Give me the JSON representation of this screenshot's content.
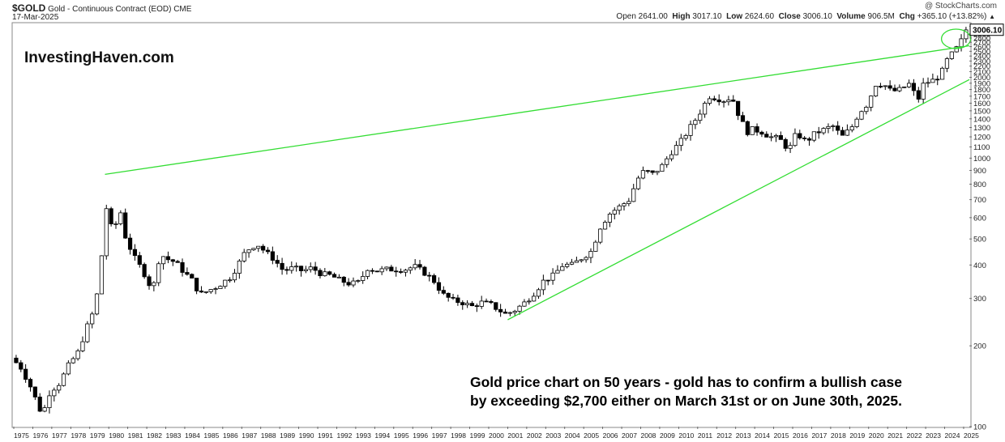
{
  "header": {
    "symbol": "$GOLD",
    "name": "Gold - Continuous Contract (EOD)",
    "exchange": "CME",
    "date": "17-Mar-2025",
    "credit": "@ StockCharts.com",
    "open_label": "Open",
    "open_value": "2641.00",
    "high_label": "High",
    "high_value": "3017.10",
    "low_label": "Low",
    "low_value": "2624.60",
    "close_label": "Close",
    "close_value": "3006.10",
    "volume_label": "Volume",
    "volume_value": "906.5M",
    "chg_label": "Chg",
    "chg_value": "+365.10 (+13.82%)",
    "chg_arrow": "▲"
  },
  "chart_data": {
    "type": "candlestick",
    "scale": "log",
    "ylim": [
      100,
      3150
    ],
    "xlim": [
      1975,
      2025.3
    ],
    "grid": false,
    "watermark": "InvestingHaven.com",
    "last_price_label": "3006.10",
    "yticks": [
      100,
      200,
      300,
      400,
      500,
      600,
      700,
      800,
      900,
      1000,
      1100,
      1200,
      1300,
      1400,
      1500,
      1600,
      1700,
      1800,
      1900,
      2000,
      2100,
      2200,
      2300,
      2400,
      2500,
      2600,
      2700,
      2800,
      2900,
      3100
    ],
    "xticks": [
      1975,
      1976,
      1977,
      1978,
      1979,
      1980,
      1981,
      1982,
      1983,
      1984,
      1985,
      1986,
      1987,
      1988,
      1989,
      1990,
      1991,
      1992,
      1993,
      1994,
      1995,
      1996,
      1997,
      1998,
      1999,
      2000,
      2001,
      2002,
      2003,
      2004,
      2005,
      2006,
      2007,
      2008,
      2009,
      2010,
      2011,
      2012,
      2013,
      2014,
      2015,
      2016,
      2017,
      2018,
      2019,
      2020,
      2021,
      2022,
      2023,
      2024,
      2025
    ],
    "annotation": [
      "Gold price chart on 50 years - gold has to confirm a bullish case",
      "by exceeding $2,700 either on March 31st or on June 30th, 2025."
    ],
    "trendlines": [
      {
        "color": "#33dd33",
        "from": [
          1979.8,
          870
        ],
        "to": [
          2025.3,
          2620
        ]
      },
      {
        "color": "#33dd33",
        "from": [
          2001.0,
          250
        ],
        "to": [
          2025.3,
          1960
        ]
      }
    ],
    "highlight_circle": {
      "color": "#33dd33",
      "center": [
        2024.6,
        2780
      ]
    },
    "price_points": [
      [
        1975.0,
        180
      ],
      [
        1975.5,
        165
      ],
      [
        1976.0,
        140
      ],
      [
        1976.6,
        110
      ],
      [
        1977.0,
        135
      ],
      [
        1977.5,
        145
      ],
      [
        1978.0,
        170
      ],
      [
        1978.5,
        190
      ],
      [
        1978.9,
        230
      ],
      [
        1979.4,
        280
      ],
      [
        1979.8,
        480
      ],
      [
        1980.0,
        680
      ],
      [
        1980.3,
        520
      ],
      [
        1980.7,
        640
      ],
      [
        1981.0,
        500
      ],
      [
        1981.5,
        420
      ],
      [
        1981.9,
        380
      ],
      [
        1982.4,
        320
      ],
      [
        1982.8,
        440
      ],
      [
        1983.2,
        420
      ],
      [
        1983.6,
        410
      ],
      [
        1984.0,
        380
      ],
      [
        1984.5,
        350
      ],
      [
        1984.9,
        310
      ],
      [
        1985.3,
        320
      ],
      [
        1985.7,
        330
      ],
      [
        1986.0,
        340
      ],
      [
        1986.5,
        360
      ],
      [
        1986.9,
        400
      ],
      [
        1987.3,
        450
      ],
      [
        1987.9,
        480
      ],
      [
        1988.3,
        450
      ],
      [
        1988.8,
        420
      ],
      [
        1989.3,
        380
      ],
      [
        1989.8,
        390
      ],
      [
        1990.3,
        380
      ],
      [
        1990.8,
        390
      ],
      [
        1991.3,
        370
      ],
      [
        1991.8,
        365
      ],
      [
        1992.3,
        350
      ],
      [
        1992.8,
        340
      ],
      [
        1993.3,
        345
      ],
      [
        1993.7,
        390
      ],
      [
        1994.2,
        380
      ],
      [
        1994.7,
        385
      ],
      [
        1995.2,
        385
      ],
      [
        1995.7,
        385
      ],
      [
        1996.2,
        395
      ],
      [
        1996.7,
        375
      ],
      [
        1997.2,
        350
      ],
      [
        1997.7,
        310
      ],
      [
        1998.2,
        295
      ],
      [
        1998.7,
        290
      ],
      [
        1999.2,
        280
      ],
      [
        1999.7,
        290
      ],
      [
        2000.2,
        285
      ],
      [
        2000.7,
        270
      ],
      [
        2001.0,
        262
      ],
      [
        2001.5,
        272
      ],
      [
        2002.0,
        290
      ],
      [
        2002.5,
        315
      ],
      [
        2003.0,
        350
      ],
      [
        2003.5,
        365
      ],
      [
        2004.0,
        400
      ],
      [
        2004.5,
        400
      ],
      [
        2005.0,
        425
      ],
      [
        2005.5,
        450
      ],
      [
        2006.0,
        560
      ],
      [
        2006.5,
        625
      ],
      [
        2007.0,
        660
      ],
      [
        2007.5,
        700
      ],
      [
        2007.9,
        830
      ],
      [
        2008.3,
        900
      ],
      [
        2008.7,
        870
      ],
      [
        2009.2,
        930
      ],
      [
        2009.7,
        1050
      ],
      [
        2010.2,
        1150
      ],
      [
        2010.7,
        1300
      ],
      [
        2011.1,
        1430
      ],
      [
        2011.7,
        1700
      ],
      [
        2012.0,
        1680
      ],
      [
        2012.5,
        1640
      ],
      [
        2012.9,
        1690
      ],
      [
        2013.3,
        1420
      ],
      [
        2013.7,
        1250
      ],
      [
        2014.0,
        1280
      ],
      [
        2014.5,
        1250
      ],
      [
        2014.9,
        1200
      ],
      [
        2015.4,
        1180
      ],
      [
        2015.9,
        1070
      ],
      [
        2016.3,
        1240
      ],
      [
        2016.8,
        1150
      ],
      [
        2017.3,
        1240
      ],
      [
        2017.8,
        1280
      ],
      [
        2018.2,
        1320
      ],
      [
        2018.7,
        1200
      ],
      [
        2019.2,
        1300
      ],
      [
        2019.6,
        1480
      ],
      [
        2020.0,
        1580
      ],
      [
        2020.5,
        1900
      ],
      [
        2020.9,
        1880
      ],
      [
        2021.3,
        1770
      ],
      [
        2021.8,
        1800
      ],
      [
        2022.2,
        1900
      ],
      [
        2022.7,
        1650
      ],
      [
        2023.0,
        1900
      ],
      [
        2023.5,
        1950
      ],
      [
        2023.9,
        2050
      ],
      [
        2024.2,
        2300
      ],
      [
        2024.6,
        2500
      ],
      [
        2024.9,
        2650
      ],
      [
        2025.2,
        3006
      ]
    ]
  }
}
